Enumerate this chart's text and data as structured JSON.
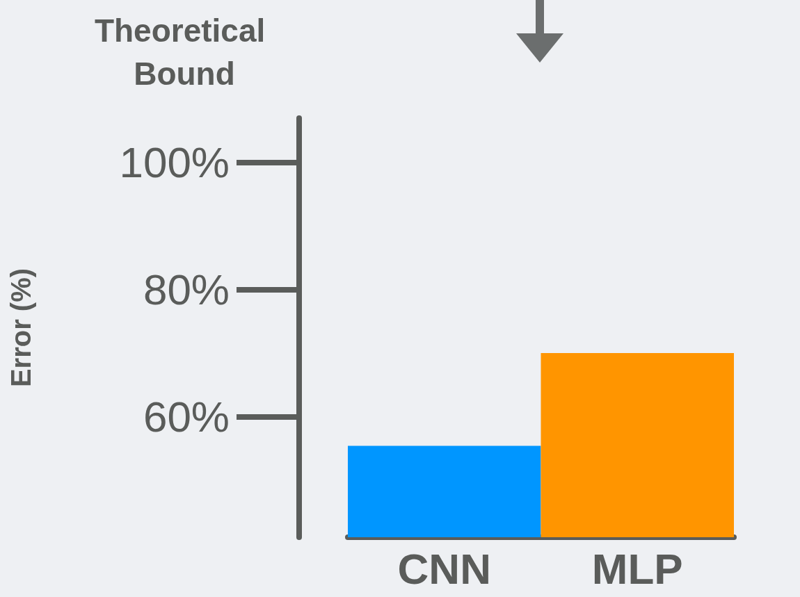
{
  "chart_data": {
    "type": "bar",
    "title": "Theoretical Bound",
    "ylabel": "Error (%)",
    "categories": [
      "CNN",
      "MLP"
    ],
    "values": [
      55.4,
      70
    ],
    "colors": [
      "#0096ff",
      "#ff9500"
    ],
    "ylim": [
      41,
      107
    ],
    "yticks": [
      {
        "value": 60,
        "label": "60%"
      },
      {
        "value": 80,
        "label": "80%"
      },
      {
        "value": 100,
        "label": "100%"
      }
    ],
    "grid": false
  }
}
